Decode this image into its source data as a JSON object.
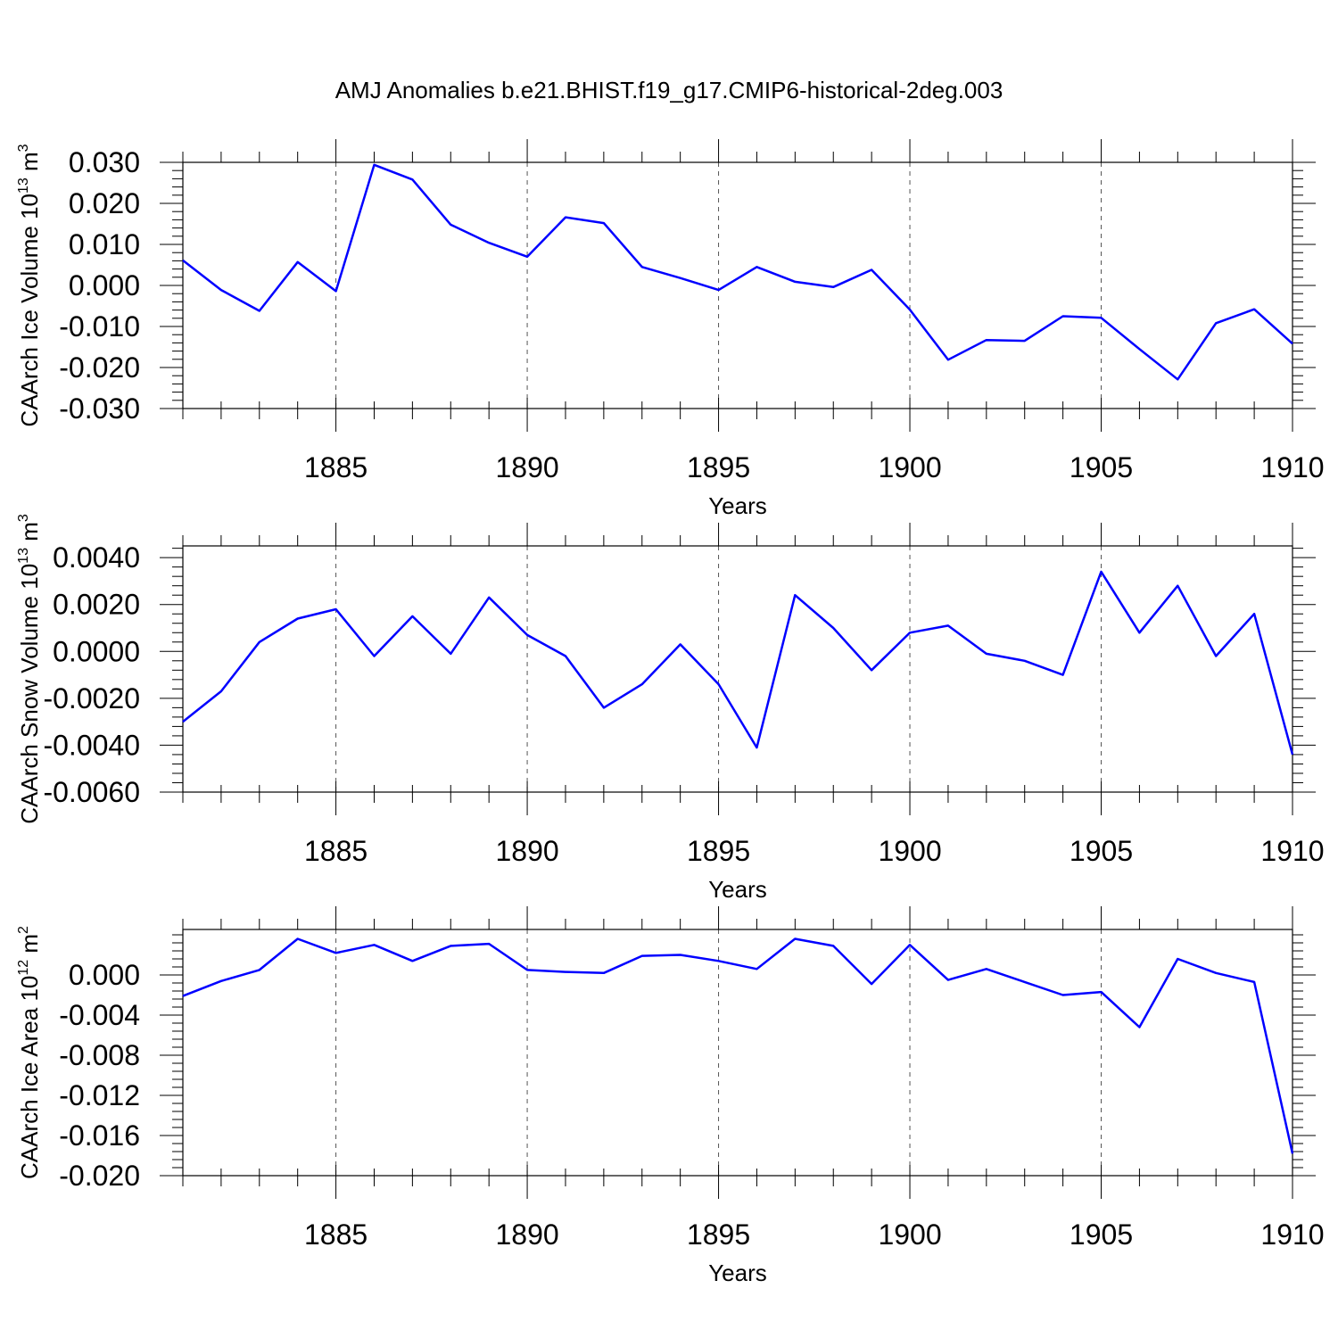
{
  "title": "AMJ Anomalies b.e21.BHIST.f19_g17.CMIP6-historical-2deg.003",
  "chart_data": [
    {
      "type": "line",
      "title": "AMJ Anomalies b.e21.BHIST.f19_g17.CMIP6-historical-2deg.003",
      "xlabel": "Years",
      "ylabel": "CAArch Ice Volume 10",
      "ylabel_exp": "13",
      "ylabel_unit": " m",
      "ylabel_unit_exp": "3",
      "xlim": [
        1881,
        1910
      ],
      "ylim": [
        -0.03,
        0.03
      ],
      "yticks": [
        0.03,
        0.02,
        0.01,
        0.0,
        -0.01,
        -0.02,
        -0.03
      ],
      "ytick_labels": [
        "0.030",
        "0.020",
        "0.010",
        "0.000",
        "-0.010",
        "-0.020",
        "-0.030"
      ],
      "xticks": [
        1885,
        1890,
        1895,
        1900,
        1905,
        1910
      ],
      "xtick_labels": [
        "1885",
        "1890",
        "1895",
        "1900",
        "1905",
        "1910"
      ],
      "series_color": "#0000ff",
      "x": [
        1881,
        1882,
        1883,
        1884,
        1885,
        1886,
        1887,
        1888,
        1889,
        1890,
        1891,
        1892,
        1893,
        1894,
        1895,
        1896,
        1897,
        1898,
        1899,
        1900,
        1901,
        1902,
        1903,
        1904,
        1905,
        1906,
        1907,
        1908,
        1909,
        1910
      ],
      "values": [
        0.0061,
        -0.0011,
        -0.0062,
        0.0057,
        -0.0014,
        0.0294,
        0.0258,
        0.0148,
        0.0104,
        0.007,
        0.0166,
        0.0152,
        0.0045,
        0.0018,
        -0.0011,
        0.0045,
        0.0009,
        -0.0004,
        0.0038,
        -0.0059,
        -0.0181,
        -0.0133,
        -0.0135,
        -0.0075,
        -0.0079,
        -0.0155,
        -0.0229,
        -0.0092,
        -0.0058,
        -0.0142
      ]
    },
    {
      "type": "line",
      "xlabel": "Years",
      "ylabel": "CAArch Snow Volume 10",
      "ylabel_exp": "13",
      "ylabel_unit": " m",
      "ylabel_unit_exp": "3",
      "xlim": [
        1881,
        1910
      ],
      "ylim": [
        -0.006,
        0.0045
      ],
      "yticks": [
        0.004,
        0.002,
        0.0,
        -0.002,
        -0.004,
        -0.006
      ],
      "ytick_labels": [
        "0.0040",
        "0.0020",
        "0.0000",
        "-0.0020",
        "-0.0040",
        "-0.0060"
      ],
      "xticks": [
        1885,
        1890,
        1895,
        1900,
        1905,
        1910
      ],
      "xtick_labels": [
        "1885",
        "1890",
        "1895",
        "1900",
        "1905",
        "1910"
      ],
      "series_color": "#0000ff",
      "x": [
        1881,
        1882,
        1883,
        1884,
        1885,
        1886,
        1887,
        1888,
        1889,
        1890,
        1891,
        1892,
        1893,
        1894,
        1895,
        1896,
        1897,
        1898,
        1899,
        1900,
        1901,
        1902,
        1903,
        1904,
        1905,
        1906,
        1907,
        1908,
        1909,
        1910
      ],
      "values": [
        -0.003,
        -0.0017,
        0.0004,
        0.0014,
        0.0018,
        -0.0002,
        0.0015,
        -0.0001,
        0.0023,
        0.0007,
        -0.0002,
        -0.0024,
        -0.0014,
        0.0003,
        -0.0014,
        -0.0041,
        0.0024,
        0.001,
        -0.0008,
        0.0008,
        0.0011,
        -0.0001,
        -0.0004,
        -0.001,
        0.0034,
        0.0008,
        0.0028,
        -0.0002,
        0.0016,
        -0.0044
      ]
    },
    {
      "type": "line",
      "xlabel": "Years",
      "ylabel": "CAArch Ice Area 10",
      "ylabel_exp": "12",
      "ylabel_unit": " m",
      "ylabel_unit_exp": "2",
      "xlim": [
        1881,
        1910
      ],
      "ylim": [
        -0.02,
        0.004
      ],
      "yticks": [
        0.0,
        -0.004,
        -0.008,
        -0.012,
        -0.016,
        -0.02
      ],
      "ytick_labels": [
        "0.000",
        "-0.004",
        "-0.008",
        "-0.012",
        "-0.016",
        "-0.020"
      ],
      "xticks": [
        1885,
        1890,
        1895,
        1900,
        1905,
        1910
      ],
      "xtick_labels": [
        "1885",
        "1890",
        "1895",
        "1900",
        "1905",
        "1910"
      ],
      "series_color": "#0000ff",
      "x": [
        1881,
        1882,
        1883,
        1884,
        1885,
        1886,
        1887,
        1888,
        1889,
        1890,
        1891,
        1892,
        1893,
        1894,
        1895,
        1896,
        1897,
        1898,
        1899,
        1900,
        1901,
        1902,
        1903,
        1904,
        1905,
        1906,
        1907,
        1908,
        1909,
        1910
      ],
      "values": [
        -0.0021,
        -0.0006,
        0.0005,
        0.0036,
        0.0022,
        0.003,
        0.0014,
        0.0029,
        0.0031,
        0.0005,
        0.0003,
        0.0002,
        0.0019,
        0.002,
        0.0014,
        0.0006,
        0.0036,
        0.0029,
        -0.0009,
        0.003,
        -0.0005,
        0.0006,
        -0.0007,
        -0.002,
        -0.0017,
        -0.0052,
        0.0016,
        0.0002,
        -0.0007,
        -0.0178
      ]
    }
  ]
}
